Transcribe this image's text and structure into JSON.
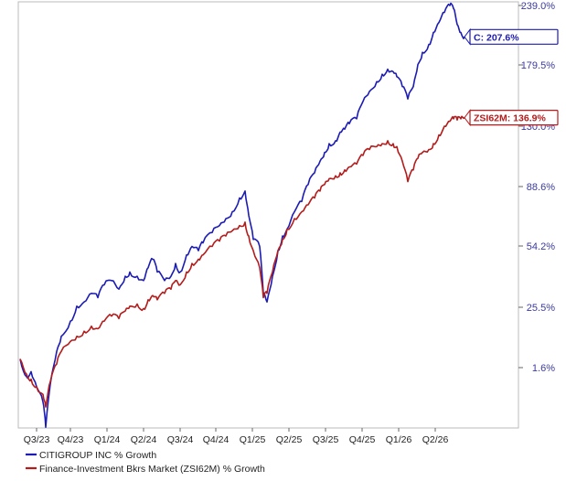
{
  "chart_data": {
    "type": "line",
    "y_axis_ticks": [
      "239.0%",
      "179.5%",
      "130.0%",
      "88.6%",
      "54.2%",
      "25.5%",
      "1.6%"
    ],
    "y_tick_values": [
      239.0,
      179.5,
      130.0,
      88.6,
      54.2,
      25.5,
      1.6
    ],
    "x_axis_ticks": [
      "Q3/23",
      "Q4/23",
      "Q1/24",
      "Q2/24",
      "Q3/24",
      "Q4/24",
      "Q1/25",
      "Q2/25",
      "Q3/25",
      "Q4/25",
      "Q1/26",
      "Q2/26"
    ],
    "grid": false,
    "legend_placement": "bottom-left",
    "series": [
      {
        "name": "CITIGROUP INC % Growth",
        "color": "#1c1cb4",
        "callout": "C: 207.6%",
        "points": [
          [
            "Q3/23",
            5
          ],
          [
            7,
            -2
          ],
          [
            12,
            0
          ],
          [
            18,
            -6
          ],
          [
            25,
            -12
          ],
          [
            28,
            -22
          ],
          [
            33,
            -5
          ],
          [
            "Q4/23",
            8
          ],
          [
            45,
            14
          ],
          [
            55,
            20
          ],
          [
            62,
            26
          ],
          [
            "Q1/24",
            28
          ],
          [
            78,
            32
          ],
          [
            85,
            30
          ],
          [
            92,
            36
          ],
          [
            100,
            38
          ],
          [
            108,
            34
          ],
          [
            115,
            40
          ],
          [
            "Q2/24",
            42
          ],
          [
            128,
            40
          ],
          [
            135,
            38
          ],
          [
            140,
            44
          ],
          [
            145,
            48
          ],
          [
            150,
            42
          ],
          [
            158,
            38
          ],
          [
            "Q3/24",
            40
          ],
          [
            170,
            46
          ],
          [
            175,
            42
          ],
          [
            182,
            50
          ],
          [
            188,
            54
          ],
          [
            195,
            52
          ],
          [
            "Q4/24",
            56
          ],
          [
            210,
            62
          ],
          [
            218,
            66
          ],
          [
            225,
            70
          ],
          [
            232,
            74
          ],
          [
            240,
            82
          ],
          [
            246,
            86
          ],
          [
            250,
            72
          ],
          [
            "Q1/25",
            58
          ],
          [
            262,
            54
          ],
          [
            266,
            32
          ],
          [
            270,
            28
          ],
          [
            276,
            40
          ],
          [
            282,
            52
          ],
          [
            "Q2/25",
            60
          ],
          [
            292,
            64
          ],
          [
            300,
            74
          ],
          [
            308,
            80
          ],
          [
            315,
            90
          ],
          [
            322,
            98
          ],
          [
            328,
            106
          ],
          [
            "Q3/25",
            112
          ],
          [
            338,
            118
          ],
          [
            345,
            120
          ],
          [
            350,
            126
          ],
          [
            355,
            128
          ],
          [
            360,
            132
          ],
          [
            "Q4/25",
            136
          ],
          [
            375,
            150
          ],
          [
            382,
            158
          ],
          [
            390,
            166
          ],
          [
            396,
            172
          ],
          [
            402,
            176
          ],
          [
            408,
            174
          ],
          [
            "Q1/26",
            170
          ],
          [
            418,
            162
          ],
          [
            424,
            152
          ],
          [
            430,
            162
          ],
          [
            435,
            180
          ],
          [
            440,
            192
          ],
          [
            "Q2/26",
            200
          ],
          [
            452,
            212
          ],
          [
            458,
            222
          ],
          [
            464,
            232
          ],
          [
            470,
            239
          ],
          [
            474,
            236
          ],
          [
            478,
            220
          ],
          [
            482,
            212
          ],
          [
            486,
            207.6
          ]
        ]
      },
      {
        "name": "Finance-Investment Bkrs Market (ZSI62M) % Growth",
        "color": "#b41c1c",
        "callout": "ZSI62M: 136.9%",
        "points": [
          [
            "Q3/23",
            5
          ],
          [
            7,
            -1
          ],
          [
            12,
            -3
          ],
          [
            18,
            -6
          ],
          [
            25,
            -9
          ],
          [
            28,
            -14
          ],
          [
            33,
            -4
          ],
          [
            "Q4/23",
            3
          ],
          [
            45,
            8
          ],
          [
            55,
            12
          ],
          [
            62,
            14
          ],
          [
            "Q1/24",
            16
          ],
          [
            78,
            18
          ],
          [
            85,
            17
          ],
          [
            92,
            20
          ],
          [
            100,
            22
          ],
          [
            108,
            21
          ],
          [
            115,
            24
          ],
          [
            "Q2/24",
            26
          ],
          [
            128,
            27
          ],
          [
            135,
            25
          ],
          [
            140,
            29
          ],
          [
            145,
            31
          ],
          [
            150,
            29
          ],
          [
            158,
            32
          ],
          [
            "Q3/24",
            34
          ],
          [
            170,
            38
          ],
          [
            175,
            36
          ],
          [
            182,
            42
          ],
          [
            188,
            46
          ],
          [
            195,
            48
          ],
          [
            "Q4/24",
            50
          ],
          [
            210,
            54
          ],
          [
            218,
            57
          ],
          [
            225,
            60
          ],
          [
            232,
            63
          ],
          [
            240,
            66
          ],
          [
            246,
            68
          ],
          [
            250,
            60
          ],
          [
            "Q1/25",
            52
          ],
          [
            262,
            44
          ],
          [
            266,
            30
          ],
          [
            270,
            32
          ],
          [
            276,
            42
          ],
          [
            282,
            52
          ],
          [
            "Q2/25",
            58
          ],
          [
            292,
            64
          ],
          [
            300,
            70
          ],
          [
            308,
            74
          ],
          [
            315,
            78
          ],
          [
            322,
            82
          ],
          [
            328,
            86
          ],
          [
            "Q3/25",
            90
          ],
          [
            338,
            94
          ],
          [
            345,
            96
          ],
          [
            350,
            98
          ],
          [
            355,
            100
          ],
          [
            360,
            102
          ],
          [
            "Q4/25",
            104
          ],
          [
            375,
            110
          ],
          [
            382,
            114
          ],
          [
            390,
            116
          ],
          [
            396,
            118
          ],
          [
            402,
            120
          ],
          [
            408,
            118
          ],
          [
            "Q1/26",
            116
          ],
          [
            418,
            106
          ],
          [
            424,
            92
          ],
          [
            430,
            100
          ],
          [
            435,
            108
          ],
          [
            440,
            112
          ],
          [
            "Q2/26",
            114
          ],
          [
            452,
            118
          ],
          [
            458,
            124
          ],
          [
            464,
            130
          ],
          [
            470,
            134
          ],
          [
            474,
            136
          ],
          [
            478,
            135
          ],
          [
            482,
            136
          ],
          [
            486,
            136.9
          ]
        ]
      }
    ]
  }
}
